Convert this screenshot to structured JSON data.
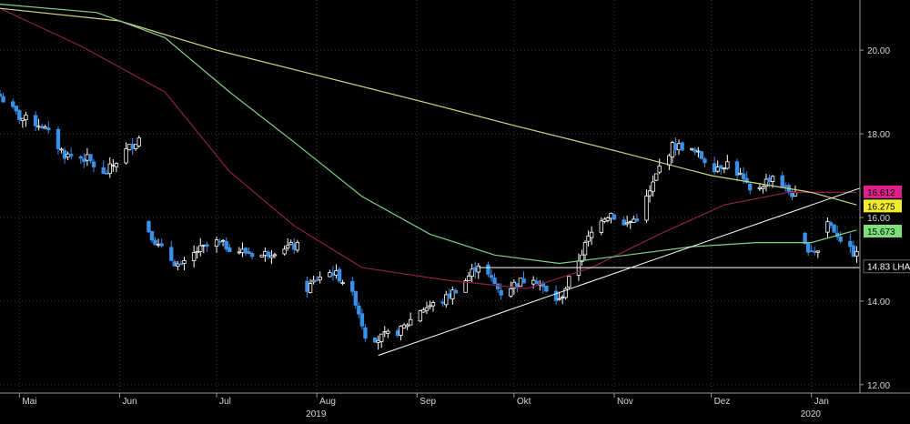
{
  "chart_data": {
    "type": "candlestick",
    "y_axis": {
      "side": "right",
      "range": [
        11.8,
        21.2
      ],
      "ticks": [
        "20.00",
        "18.00",
        "16.00",
        "14.00",
        "12.00"
      ],
      "tick_values": [
        20,
        18,
        16,
        14,
        12
      ]
    },
    "x_axis": {
      "range": [
        "2019-04-25",
        "2020-01-16"
      ],
      "months": [
        {
          "label": "Mai",
          "date": "2019-05-01"
        },
        {
          "label": "Jun",
          "date": "2019-06-01"
        },
        {
          "label": "Jul",
          "date": "2019-07-01"
        },
        {
          "label": "Aug",
          "date": "2019-08-01"
        },
        {
          "label": "Sep",
          "date": "2019-09-01"
        },
        {
          "label": "Okt",
          "date": "2019-10-01"
        },
        {
          "label": "Nov",
          "date": "2019-11-01"
        },
        {
          "label": "Dez",
          "date": "2019-12-01"
        },
        {
          "label": "Jan",
          "date": "2020-01-01"
        }
      ],
      "years": [
        {
          "label": "2019",
          "date": "2019-08-01"
        },
        {
          "label": "2020",
          "date": "2020-01-01"
        }
      ]
    },
    "price_path": [
      [
        "2019-04-25",
        18.9
      ],
      [
        "2019-05-01",
        18.4
      ],
      [
        "2019-05-08",
        18.2
      ],
      [
        "2019-05-15",
        17.5
      ],
      [
        "2019-05-22",
        17.4
      ],
      [
        "2019-05-27",
        17.0
      ],
      [
        "2019-06-03",
        17.6
      ],
      [
        "2019-06-07",
        17.9
      ],
      [
        "2019-06-10",
        15.7
      ],
      [
        "2019-06-13",
        15.3
      ],
      [
        "2019-06-17",
        15.0
      ],
      [
        "2019-06-20",
        14.8
      ],
      [
        "2019-06-25",
        15.2
      ],
      [
        "2019-07-01",
        15.4
      ],
      [
        "2019-07-08",
        15.2
      ],
      [
        "2019-07-15",
        15.1
      ],
      [
        "2019-07-22",
        15.3
      ],
      [
        "2019-07-26",
        15.3
      ],
      [
        "2019-07-29",
        14.3
      ],
      [
        "2019-08-02",
        14.6
      ],
      [
        "2019-08-06",
        14.7
      ],
      [
        "2019-08-09",
        14.5
      ],
      [
        "2019-08-13",
        14.0
      ],
      [
        "2019-08-16",
        13.2
      ],
      [
        "2019-08-20",
        13.1
      ],
      [
        "2019-08-27",
        13.3
      ],
      [
        "2019-09-02",
        13.8
      ],
      [
        "2019-09-09",
        14.0
      ],
      [
        "2019-09-16",
        14.5
      ],
      [
        "2019-09-20",
        14.9
      ],
      [
        "2019-09-23",
        14.6
      ],
      [
        "2019-09-27",
        14.2
      ],
      [
        "2019-10-01",
        14.4
      ],
      [
        "2019-10-07",
        14.6
      ],
      [
        "2019-10-11",
        14.2
      ],
      [
        "2019-10-15",
        14.0
      ],
      [
        "2019-10-18",
        14.5
      ],
      [
        "2019-10-21",
        15.0
      ],
      [
        "2019-10-24",
        15.5
      ],
      [
        "2019-10-28",
        16.0
      ],
      [
        "2019-10-31",
        16.1
      ],
      [
        "2019-11-04",
        15.8
      ],
      [
        "2019-11-08",
        16.0
      ],
      [
        "2019-11-12",
        16.6
      ],
      [
        "2019-11-15",
        17.2
      ],
      [
        "2019-11-19",
        17.7
      ],
      [
        "2019-11-22",
        17.7
      ],
      [
        "2019-11-27",
        17.5
      ],
      [
        "2019-12-02",
        17.2
      ],
      [
        "2019-12-06",
        17.3
      ],
      [
        "2019-12-10",
        17.0
      ],
      [
        "2019-12-13",
        16.6
      ],
      [
        "2019-12-17",
        16.8
      ],
      [
        "2019-12-20",
        17.0
      ],
      [
        "2019-12-24",
        16.7
      ],
      [
        "2019-12-27",
        16.5
      ],
      [
        "2019-12-30",
        15.3
      ],
      [
        "2020-01-03",
        15.2
      ],
      [
        "2020-01-06",
        15.9
      ],
      [
        "2020-01-09",
        15.6
      ],
      [
        "2020-01-13",
        15.2
      ],
      [
        "2020-01-15",
        15.1
      ]
    ],
    "moving_averages": [
      {
        "color": "#8a1f4f",
        "points": [
          [
            "2019-04-25",
            21.0
          ],
          [
            "2019-05-20",
            20.1
          ],
          [
            "2019-06-15",
            19.0
          ],
          [
            "2019-07-05",
            17.1
          ],
          [
            "2019-07-25",
            15.8
          ],
          [
            "2019-08-15",
            14.8
          ],
          [
            "2019-09-10",
            14.5
          ],
          [
            "2019-10-05",
            14.3
          ],
          [
            "2019-10-25",
            14.8
          ],
          [
            "2019-11-15",
            15.6
          ],
          [
            "2019-12-05",
            16.3
          ],
          [
            "2019-12-25",
            16.6
          ],
          [
            "2020-01-15",
            16.6
          ]
        ]
      },
      {
        "color": "#cfd87a",
        "points": [
          [
            "2019-04-25",
            21.0
          ],
          [
            "2019-06-01",
            20.7
          ],
          [
            "2019-07-01",
            20.0
          ],
          [
            "2019-08-01",
            19.4
          ],
          [
            "2019-09-01",
            18.8
          ],
          [
            "2019-10-01",
            18.2
          ],
          [
            "2019-11-01",
            17.6
          ],
          [
            "2019-12-01",
            17.0
          ],
          [
            "2020-01-01",
            16.6
          ],
          [
            "2020-01-15",
            16.3
          ]
        ]
      },
      {
        "color": "#7fd08a",
        "points": [
          [
            "2019-04-25",
            21.1
          ],
          [
            "2019-05-25",
            20.9
          ],
          [
            "2019-06-15",
            20.3
          ],
          [
            "2019-07-05",
            19.0
          ],
          [
            "2019-07-25",
            17.8
          ],
          [
            "2019-08-15",
            16.5
          ],
          [
            "2019-09-05",
            15.6
          ],
          [
            "2019-09-25",
            15.1
          ],
          [
            "2019-10-15",
            14.9
          ],
          [
            "2019-11-05",
            15.1
          ],
          [
            "2019-11-25",
            15.3
          ],
          [
            "2019-12-15",
            15.4
          ],
          [
            "2020-01-01",
            15.4
          ],
          [
            "2020-01-15",
            15.7
          ]
        ]
      }
    ],
    "trendlines": [
      {
        "from": [
          "2019-08-20",
          12.7
        ],
        "to": [
          "2020-01-16",
          16.7
        ],
        "color": "#ffffff"
      },
      {
        "from": [
          "2019-09-20",
          14.8
        ],
        "to": [
          "2020-01-16",
          14.8
        ],
        "color": "#ffffff"
      }
    ],
    "tags": [
      {
        "label": "16.612",
        "value": 16.612,
        "bg": "#e0208a"
      },
      {
        "label": "16.275",
        "value": 16.275,
        "bg": "#f2ef2a"
      },
      {
        "label": "15.673",
        "value": 15.673,
        "bg": "#7ee07a"
      }
    ],
    "last_price": {
      "label": "14.83 LHA",
      "value": 14.83
    },
    "colors": {
      "up": "#ffffff",
      "down": "#3a8fe8",
      "grid": "#3a3a3a"
    },
    "grid": true
  }
}
